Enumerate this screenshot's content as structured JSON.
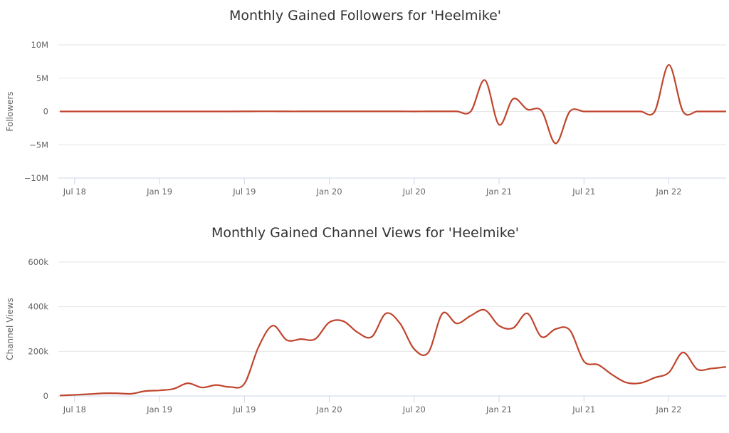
{
  "colors": {
    "series": "#c0452e"
  },
  "chart_data": [
    {
      "type": "line",
      "title": "Monthly Gained Followers for 'Heelmike'",
      "ylabel": "Followers",
      "ylim": [
        -10000000,
        10000000
      ],
      "yticks": [
        {
          "value": 10000000,
          "label": "10M"
        },
        {
          "value": 5000000,
          "label": "5M"
        },
        {
          "value": 0,
          "label": "0"
        },
        {
          "value": -5000000,
          "label": "−5M"
        },
        {
          "value": -10000000,
          "label": "−10M"
        }
      ],
      "xlim": [
        "2018-06",
        "2022-05"
      ],
      "xticks": [
        {
          "date": "2018-07",
          "label": "Jul 18"
        },
        {
          "date": "2019-01",
          "label": "Jan 19"
        },
        {
          "date": "2019-07",
          "label": "Jul 19"
        },
        {
          "date": "2020-01",
          "label": "Jan 20"
        },
        {
          "date": "2020-07",
          "label": "Jul 20"
        },
        {
          "date": "2021-01",
          "label": "Jan 21"
        },
        {
          "date": "2021-07",
          "label": "Jul 21"
        },
        {
          "date": "2022-01",
          "label": "Jan 22"
        }
      ],
      "x": [
        "2018-06",
        "2018-07",
        "2018-08",
        "2018-09",
        "2018-10",
        "2018-11",
        "2018-12",
        "2019-01",
        "2019-02",
        "2019-03",
        "2019-04",
        "2019-05",
        "2019-06",
        "2019-07",
        "2019-08",
        "2019-09",
        "2019-10",
        "2019-11",
        "2019-12",
        "2020-01",
        "2020-02",
        "2020-03",
        "2020-04",
        "2020-05",
        "2020-06",
        "2020-07",
        "2020-08",
        "2020-09",
        "2020-10",
        "2020-11",
        "2020-12",
        "2021-01",
        "2021-02",
        "2021-03",
        "2021-04",
        "2021-05",
        "2021-06",
        "2021-07",
        "2021-08",
        "2021-09",
        "2021-10",
        "2021-11",
        "2021-12",
        "2022-01",
        "2022-02",
        "2022-03",
        "2022-04",
        "2022-05"
      ],
      "series": [
        {
          "values": [
            0,
            0,
            0,
            0,
            0,
            0,
            0,
            0,
            0,
            0,
            0,
            0,
            0,
            10000,
            20000,
            20000,
            10000,
            10000,
            10000,
            10000,
            10000,
            10000,
            10000,
            10000,
            10000,
            0,
            10000,
            10000,
            10000,
            10000,
            4700000,
            -2000000,
            1900000,
            300000,
            100000,
            -4800000,
            0,
            0,
            0,
            0,
            0,
            0,
            0,
            7000000,
            0,
            0,
            0,
            0
          ]
        }
      ]
    },
    {
      "type": "line",
      "title": "Monthly Gained Channel Views for 'Heelmike'",
      "ylabel": "Channel Views",
      "ylim": [
        0,
        600000
      ],
      "yticks": [
        {
          "value": 600000,
          "label": "600k"
        },
        {
          "value": 400000,
          "label": "400k"
        },
        {
          "value": 200000,
          "label": "200k"
        },
        {
          "value": 0,
          "label": "0"
        }
      ],
      "xlim": [
        "2018-06",
        "2022-05"
      ],
      "xticks": [
        {
          "date": "2018-07",
          "label": "Jul 18"
        },
        {
          "date": "2019-01",
          "label": "Jan 19"
        },
        {
          "date": "2019-07",
          "label": "Jul 19"
        },
        {
          "date": "2020-01",
          "label": "Jan 20"
        },
        {
          "date": "2020-07",
          "label": "Jul 20"
        },
        {
          "date": "2021-01",
          "label": "Jan 21"
        },
        {
          "date": "2021-07",
          "label": "Jul 21"
        },
        {
          "date": "2022-01",
          "label": "Jan 22"
        }
      ],
      "x": [
        "2018-06",
        "2018-07",
        "2018-08",
        "2018-09",
        "2018-10",
        "2018-11",
        "2018-12",
        "2019-01",
        "2019-02",
        "2019-03",
        "2019-04",
        "2019-05",
        "2019-06",
        "2019-07",
        "2019-08",
        "2019-09",
        "2019-10",
        "2019-11",
        "2019-12",
        "2020-01",
        "2020-02",
        "2020-03",
        "2020-04",
        "2020-05",
        "2020-06",
        "2020-07",
        "2020-08",
        "2020-09",
        "2020-10",
        "2020-11",
        "2020-12",
        "2021-01",
        "2021-02",
        "2021-03",
        "2021-04",
        "2021-05",
        "2021-06",
        "2021-07",
        "2021-08",
        "2021-09",
        "2021-10",
        "2021-11",
        "2021-12",
        "2022-01",
        "2022-02",
        "2022-03",
        "2022-04",
        "2022-05"
      ],
      "series": [
        {
          "values": [
            2000,
            5000,
            8000,
            12000,
            12000,
            10000,
            22000,
            25000,
            32000,
            57000,
            38000,
            49000,
            40000,
            55000,
            220000,
            315000,
            250000,
            255000,
            255000,
            330000,
            335000,
            285000,
            265000,
            370000,
            325000,
            210000,
            195000,
            370000,
            325000,
            360000,
            385000,
            315000,
            305000,
            370000,
            265000,
            300000,
            295000,
            155000,
            140000,
            95000,
            60000,
            58000,
            82000,
            105000,
            195000,
            120000,
            123000,
            130000
          ]
        }
      ]
    }
  ]
}
